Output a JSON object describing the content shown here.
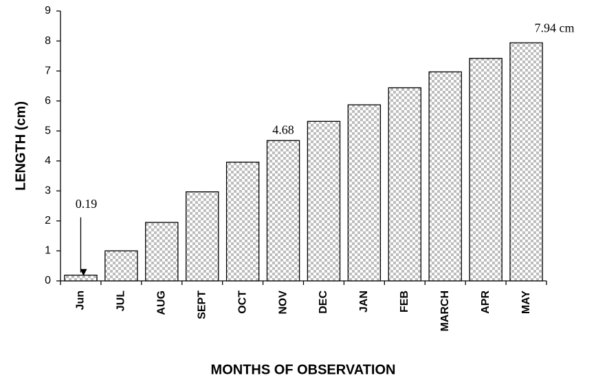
{
  "chart_data": {
    "type": "bar",
    "x_label": "MONTHS OF OBSERVATION",
    "y_label": "LENGTH (cm)",
    "categories": [
      "Jun",
      "JUL",
      "AUG",
      "SEPT",
      "OCT",
      "NOV",
      "DEC",
      "JAN",
      "FEB",
      "MARCH",
      "APR",
      "MAY"
    ],
    "values": [
      0.19,
      1.0,
      1.95,
      2.97,
      3.96,
      4.68,
      5.32,
      5.87,
      6.44,
      6.97,
      7.42,
      7.94
    ],
    "value_labels": [
      "0.19",
      null,
      null,
      null,
      null,
      "4.68",
      null,
      null,
      null,
      null,
      null,
      "7.94 cm"
    ],
    "ylim": [
      0,
      9
    ],
    "yticks": [
      0,
      1,
      2,
      3,
      4,
      5,
      6,
      7,
      8,
      9
    ],
    "grid": false
  }
}
